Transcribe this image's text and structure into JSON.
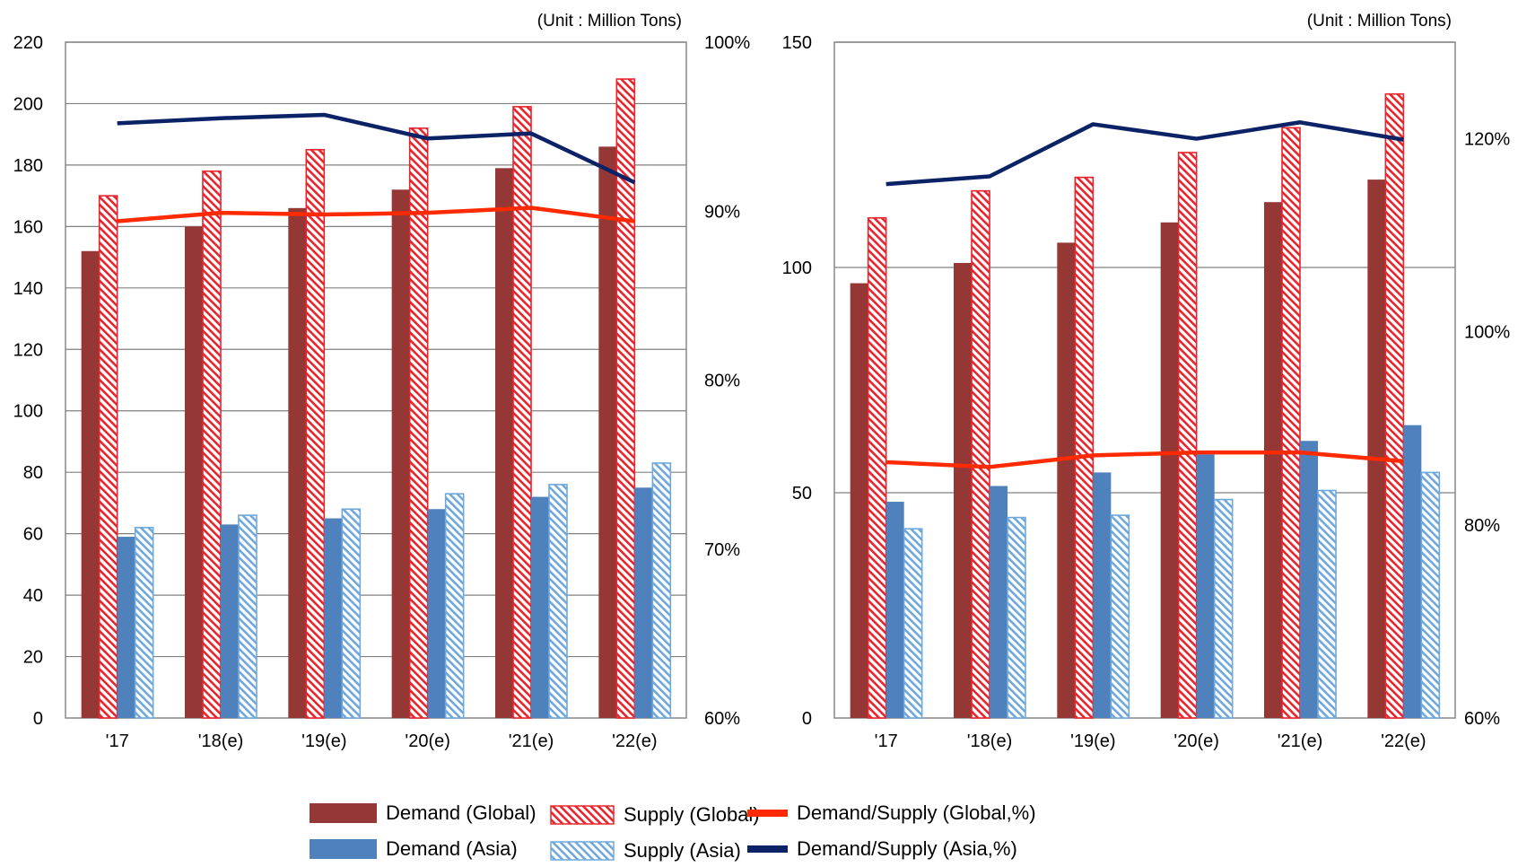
{
  "colors": {
    "demand_global": "#953735",
    "supply_global": "#e8242c",
    "demand_asia": "#4f81bd",
    "supply_asia": "#6fa8dc",
    "ratio_global": "#ff2a00",
    "ratio_asia": "#0b2266",
    "grid": "#808080"
  },
  "chart_data": [
    {
      "type": "bar",
      "unit_label": "(Unit : Million Tons)",
      "categories": [
        "'17",
        "'18(e)",
        "'19(e)",
        "'20(e)",
        "'21(e)",
        "'22(e)"
      ],
      "ylim": [
        0,
        220
      ],
      "yticks": [
        "0",
        "20",
        "40",
        "60",
        "80",
        "100",
        "120",
        "140",
        "160",
        "180",
        "200",
        "220"
      ],
      "y2lim": [
        60,
        100
      ],
      "y2ticks": [
        "60%",
        "70%",
        "80%",
        "90%",
        "100%"
      ],
      "grid": true,
      "series": [
        {
          "name": "Demand (Global)",
          "kind": "bar",
          "axis": "left",
          "values": [
            152,
            160,
            166,
            172,
            179,
            186
          ]
        },
        {
          "name": "Supply (Global)",
          "kind": "bar",
          "axis": "left",
          "values": [
            170,
            178,
            185,
            192,
            199,
            208
          ]
        },
        {
          "name": "Demand (Asia)",
          "kind": "bar",
          "axis": "left",
          "values": [
            59,
            63,
            65,
            68,
            72,
            75
          ]
        },
        {
          "name": "Supply (Asia)",
          "kind": "bar",
          "axis": "left",
          "values": [
            62,
            66,
            68,
            73,
            76,
            83
          ]
        },
        {
          "name": "Demand/Supply (Global,%)",
          "kind": "line",
          "axis": "right",
          "values": [
            89.4,
            89.9,
            89.8,
            89.9,
            90.2,
            89.4
          ]
        },
        {
          "name": "Demand/Supply (Asia,%)",
          "kind": "line",
          "axis": "right",
          "values": [
            95.2,
            95.5,
            95.7,
            94.3,
            94.6,
            91.7
          ]
        }
      ]
    },
    {
      "type": "bar",
      "unit_label": "(Unit : Million Tons)",
      "categories": [
        "'17",
        "'18(e)",
        "'19(e)",
        "'20(e)",
        "'21(e)",
        "'22(e)"
      ],
      "ylim": [
        0,
        150
      ],
      "yticks": [
        "0",
        "50",
        "100",
        "150"
      ],
      "y2lim": [
        60,
        130
      ],
      "y2ticks": [
        "60%",
        "80%",
        "100%",
        "120%"
      ],
      "grid": true,
      "series": [
        {
          "name": "Demand (Global)",
          "kind": "bar",
          "axis": "left",
          "values": [
            96.5,
            101,
            105.5,
            110,
            114.5,
            119.5
          ]
        },
        {
          "name": "Supply (Global)",
          "kind": "bar",
          "axis": "left",
          "values": [
            111,
            117,
            120,
            125.5,
            131,
            138.5
          ]
        },
        {
          "name": "Demand (Asia)",
          "kind": "bar",
          "axis": "left",
          "values": [
            48,
            51.5,
            54.5,
            58.5,
            61.5,
            65
          ]
        },
        {
          "name": "Supply (Asia)",
          "kind": "bar",
          "axis": "left",
          "values": [
            42,
            44.5,
            45,
            48.5,
            50.5,
            54.5
          ]
        },
        {
          "name": "Demand/Supply (Global,%)",
          "kind": "line",
          "axis": "right",
          "values": [
            86.5,
            86,
            87.2,
            87.5,
            87.5,
            86.6
          ]
        },
        {
          "name": "Demand/Supply (Asia,%)",
          "kind": "line",
          "axis": "right",
          "values": [
            115.3,
            116.1,
            121.5,
            120,
            121.7,
            119.9
          ]
        }
      ]
    }
  ],
  "legend": [
    {
      "label": "Demand (Global)",
      "swatch": "solid-bar",
      "color_key": "demand_global"
    },
    {
      "label": "Supply (Global)",
      "swatch": "hatched-bar",
      "color_key": "supply_global"
    },
    {
      "label": "Demand/Supply (Global,%)",
      "swatch": "line",
      "color_key": "ratio_global"
    },
    {
      "label": "Demand (Asia)",
      "swatch": "solid-bar",
      "color_key": "demand_asia"
    },
    {
      "label": "Supply (Asia)",
      "swatch": "hatched-bar",
      "color_key": "supply_asia"
    },
    {
      "label": "Demand/Supply (Asia,%)",
      "swatch": "line",
      "color_key": "ratio_asia"
    }
  ]
}
